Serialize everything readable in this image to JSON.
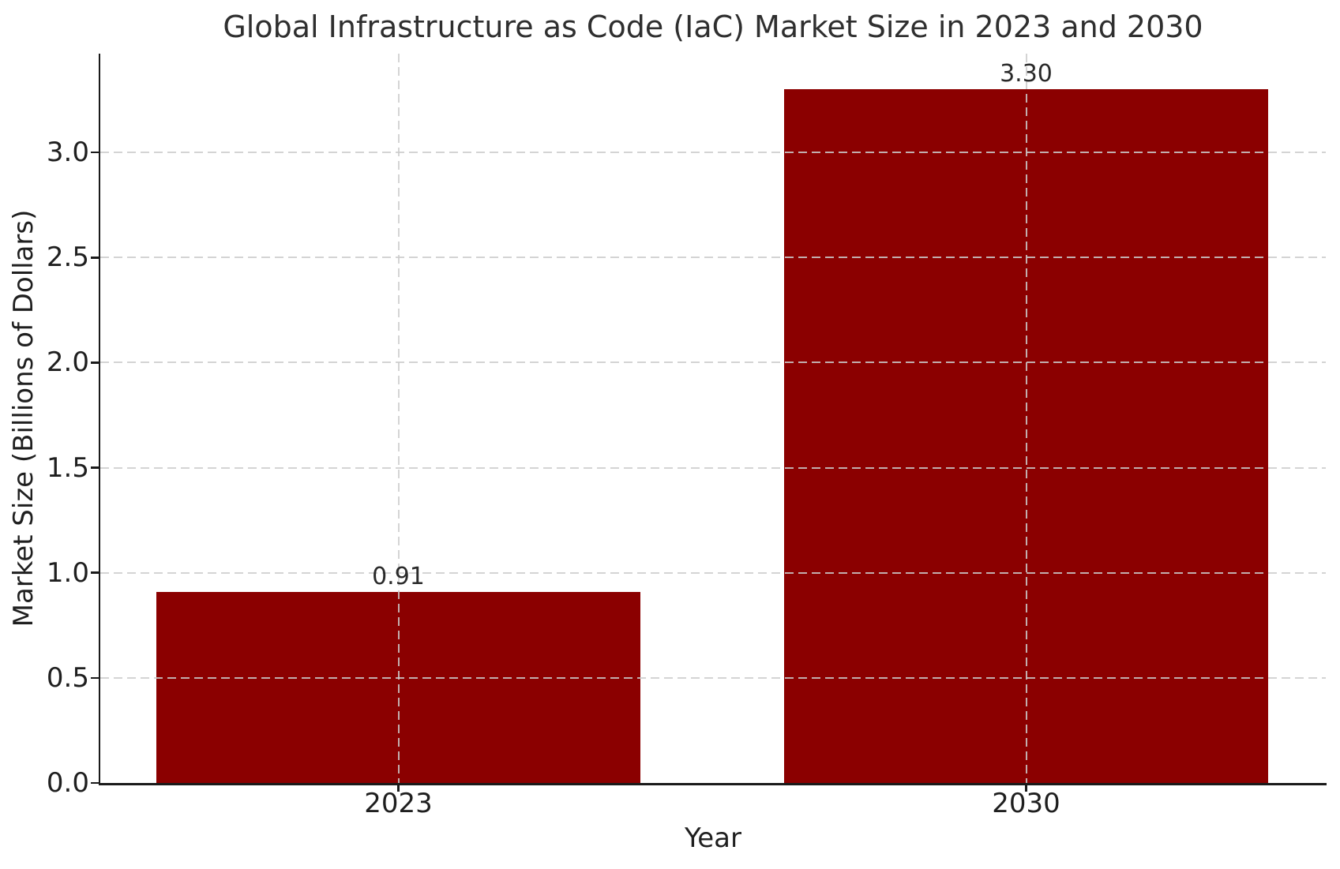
{
  "title": "Global Infrastructure as Code (IaC) Market Size in 2023 and 2030",
  "chart_data": {
    "type": "bar",
    "title": "Global Infrastructure as Code (IaC) Market Size in 2023 and 2030",
    "xlabel": "Year",
    "ylabel": "Market Size (Billions of Dollars)",
    "categories": [
      "2023",
      "2030"
    ],
    "values": [
      0.91,
      3.3
    ],
    "value_labels": [
      "0.91",
      "3.30"
    ],
    "yticks": [
      0.0,
      0.5,
      1.0,
      1.5,
      2.0,
      2.5,
      3.0
    ],
    "ytick_labels": [
      "0.0",
      "0.5",
      "1.0",
      "1.5",
      "2.0",
      "2.5",
      "3.0"
    ],
    "ylim": [
      0,
      3.47
    ],
    "bar_color": "#8B0000",
    "grid": true,
    "grid_style": "dashed",
    "grid_color": "#cccccc",
    "spine_color": "#1a1a1a",
    "text_color": "#1f1f1f",
    "background": "#ffffff",
    "legend": "none"
  }
}
